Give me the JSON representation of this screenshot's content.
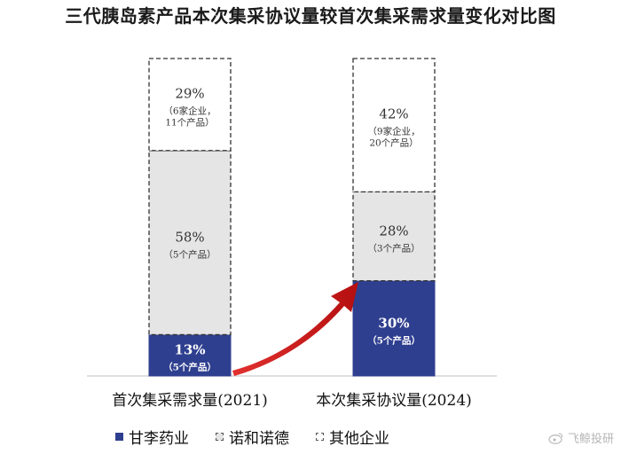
{
  "chart_data": {
    "type": "bar",
    "stacked": true,
    "title": "三代胰岛素产品本次集采协议量较首次集采需求量变化对比图",
    "categories": [
      "首次集采需求量(2021)",
      "本次集采协议量(2024)"
    ],
    "series": [
      {
        "name": "甘李药业",
        "color": "#2f3f8f",
        "values": [
          13,
          30
        ],
        "value_labels": [
          "13%",
          "30%"
        ],
        "notes": [
          "（5个产品）",
          "（5个产品）"
        ]
      },
      {
        "name": "诺和诺德",
        "color": "#e5e5e5",
        "values": [
          58,
          28
        ],
        "value_labels": [
          "58%",
          "28%"
        ],
        "notes": [
          "（5个产品）",
          "（3个产品）"
        ]
      },
      {
        "name": "其他企业",
        "color": "#ffffff",
        "values": [
          29,
          42
        ],
        "value_labels": [
          "29%",
          "42%"
        ],
        "notes": [
          "（6家企业，|11个产品）",
          "（9家企业，|20个产品）"
        ]
      }
    ],
    "ylim": [
      0,
      100
    ],
    "legend_position": "bottom",
    "grid": false
  },
  "watermark": "飞鲸投研"
}
